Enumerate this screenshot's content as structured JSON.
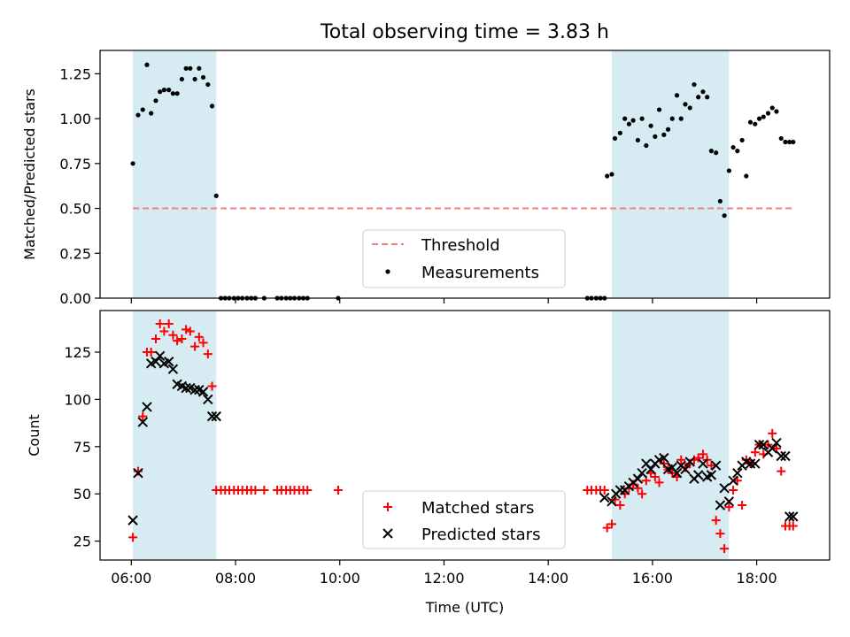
{
  "chart_data": [
    {
      "type": "scatter",
      "title": "Total observing time = 3.83 h",
      "xlabel": "",
      "ylabel": "Matched/Predicted stars",
      "ylim": [
        0,
        1.38
      ],
      "yticks": [
        "0.00",
        "0.25",
        "0.50",
        "0.75",
        "1.00",
        "1.25"
      ],
      "ytick_values": [
        0,
        0.25,
        0.5,
        0.75,
        1.0,
        1.25
      ],
      "legend": {
        "placement": "bottom-center",
        "entries": [
          "Threshold",
          "Measurements"
        ]
      },
      "threshold": {
        "name": "Threshold",
        "y": 0.5,
        "x_start": 6.03,
        "x_end": 18.7,
        "color": "#f08080"
      },
      "measurements": {
        "name": "Measurements",
        "color": "#000000",
        "x": [
          6.03,
          6.13,
          6.22,
          6.3,
          6.38,
          6.47,
          6.55,
          6.63,
          6.72,
          6.8,
          6.88,
          6.97,
          7.05,
          7.13,
          7.22,
          7.3,
          7.38,
          7.47,
          7.55,
          7.63,
          7.72,
          7.8,
          7.88,
          7.97,
          8.05,
          8.13,
          8.22,
          8.3,
          8.38,
          8.55,
          8.8,
          8.88,
          8.97,
          9.05,
          9.13,
          9.22,
          9.3,
          9.38,
          9.97,
          14.75,
          14.83,
          14.92,
          15.0,
          15.08,
          15.13,
          15.22,
          15.28,
          15.38,
          15.47,
          15.55,
          15.63,
          15.72,
          15.8,
          15.88,
          15.97,
          16.05,
          16.13,
          16.22,
          16.3,
          16.38,
          16.47,
          16.55,
          16.63,
          16.72,
          16.8,
          16.88,
          16.97,
          17.05,
          17.13,
          17.22,
          17.3,
          17.38,
          17.47,
          17.55,
          17.63,
          17.72,
          17.8,
          17.88,
          17.97,
          18.05,
          18.13,
          18.22,
          18.3,
          18.38,
          18.47,
          18.55,
          18.63,
          18.7
        ],
        "y": [
          0.75,
          1.02,
          1.05,
          1.3,
          1.03,
          1.1,
          1.15,
          1.16,
          1.16,
          1.14,
          1.14,
          1.22,
          1.28,
          1.28,
          1.22,
          1.28,
          1.23,
          1.19,
          1.07,
          0.57,
          0,
          0,
          0,
          0,
          0,
          0,
          0,
          0,
          0,
          0,
          0,
          0,
          0,
          0,
          0,
          0,
          0,
          0,
          0,
          0,
          0,
          0,
          0,
          0,
          0.68,
          0.69,
          0.89,
          0.92,
          1.0,
          0.97,
          0.99,
          0.88,
          1.0,
          0.85,
          0.96,
          0.9,
          1.05,
          0.91,
          0.94,
          1.0,
          1.13,
          1.0,
          1.08,
          1.06,
          1.19,
          1.12,
          1.15,
          1.12,
          0.82,
          0.81,
          0.54,
          0.46,
          0.71,
          0.84,
          0.82,
          0.88,
          0.68,
          0.98,
          0.97,
          1.0,
          1.01,
          1.03,
          1.06,
          1.04,
          0.89,
          0.87,
          0.87,
          0.87
        ]
      }
    },
    {
      "type": "scatter",
      "title": "",
      "xlabel": "Time (UTC)",
      "ylabel": "Count",
      "ylim": [
        15,
        147
      ],
      "yticks": [
        "25",
        "50",
        "75",
        "100",
        "125"
      ],
      "ytick_values": [
        25,
        50,
        75,
        100,
        125
      ],
      "xticks": [
        "06:00",
        "08:00",
        "10:00",
        "12:00",
        "14:00",
        "16:00",
        "18:00"
      ],
      "xtick_values": [
        6,
        8,
        10,
        12,
        14,
        16,
        18
      ],
      "xlim": [
        5.4,
        19.4
      ],
      "legend": {
        "placement": "bottom-center",
        "entries": [
          "Matched stars",
          "Predicted stars"
        ]
      },
      "series": [
        {
          "name": "Matched stars",
          "marker": "+",
          "color": "#ff0000",
          "x": [
            6.03,
            6.13,
            6.22,
            6.3,
            6.38,
            6.47,
            6.55,
            6.63,
            6.72,
            6.8,
            6.88,
            6.97,
            7.05,
            7.13,
            7.22,
            7.3,
            7.38,
            7.47,
            7.55,
            7.63,
            7.72,
            7.8,
            7.88,
            7.97,
            8.05,
            8.13,
            8.22,
            8.3,
            8.38,
            8.55,
            8.8,
            8.88,
            8.97,
            9.05,
            9.13,
            9.22,
            9.3,
            9.38,
            9.97,
            14.75,
            14.83,
            14.92,
            15.0,
            15.08,
            15.13,
            15.22,
            15.28,
            15.38,
            15.47,
            15.55,
            15.63,
            15.72,
            15.8,
            15.88,
            15.97,
            16.05,
            16.13,
            16.22,
            16.3,
            16.38,
            16.47,
            16.55,
            16.63,
            16.72,
            16.8,
            16.88,
            16.97,
            17.05,
            17.13,
            17.22,
            17.3,
            17.38,
            17.47,
            17.55,
            17.63,
            17.72,
            17.8,
            17.88,
            17.97,
            18.05,
            18.13,
            18.22,
            18.3,
            18.38,
            18.47,
            18.55,
            18.63,
            18.7
          ],
          "y": [
            27,
            62,
            91,
            125,
            125,
            132,
            140,
            136,
            140,
            134,
            131,
            132,
            137,
            136,
            128,
            133,
            130,
            124,
            107,
            52,
            52,
            52,
            52,
            52,
            52,
            52,
            52,
            52,
            52,
            52,
            52,
            52,
            52,
            52,
            52,
            52,
            52,
            52,
            52,
            52,
            52,
            52,
            52,
            52,
            32,
            34,
            47,
            44,
            50,
            53,
            55,
            53,
            50,
            57,
            61,
            59,
            56,
            66,
            63,
            61,
            59,
            68,
            64,
            66,
            68,
            69,
            71,
            68,
            65,
            36,
            29,
            21,
            43,
            52,
            57,
            44,
            68,
            66,
            72,
            76,
            71,
            76,
            82,
            74,
            62,
            33,
            33,
            33
          ]
        },
        {
          "name": "Predicted stars",
          "marker": "x",
          "color": "#000000",
          "x": [
            6.03,
            6.13,
            6.22,
            6.3,
            6.38,
            6.47,
            6.55,
            6.63,
            6.72,
            6.8,
            6.88,
            6.97,
            7.05,
            7.13,
            7.22,
            7.3,
            7.38,
            7.47,
            7.55,
            7.63,
            15.08,
            15.22,
            15.3,
            15.38,
            15.47,
            15.55,
            15.63,
            15.72,
            15.8,
            15.88,
            15.97,
            16.05,
            16.13,
            16.22,
            16.3,
            16.38,
            16.47,
            16.55,
            16.63,
            16.72,
            16.8,
            16.88,
            16.97,
            17.05,
            17.13,
            17.22,
            17.3,
            17.38,
            17.47,
            17.55,
            17.63,
            17.72,
            17.8,
            17.88,
            17.97,
            18.05,
            18.13,
            18.22,
            18.3,
            18.38,
            18.47,
            18.55,
            18.63,
            18.7
          ],
          "y": [
            36,
            61,
            88,
            96,
            119,
            120,
            123,
            119,
            120,
            116,
            108,
            107,
            106,
            106,
            105,
            105,
            104,
            100,
            91,
            91,
            48,
            46,
            50,
            52,
            52,
            54,
            56,
            58,
            61,
            66,
            63,
            66,
            68,
            69,
            63,
            64,
            61,
            65,
            63,
            67,
            58,
            60,
            66,
            59,
            60,
            65,
            44,
            53,
            46,
            57,
            61,
            65,
            67,
            66,
            66,
            76,
            76,
            72,
            74,
            77,
            70,
            70,
            38,
            38
          ]
        }
      ]
    }
  ],
  "shaded_intervals": [
    [
      6.03,
      7.63
    ],
    [
      15.22,
      17.47
    ]
  ],
  "shade_color": "#add8e6"
}
